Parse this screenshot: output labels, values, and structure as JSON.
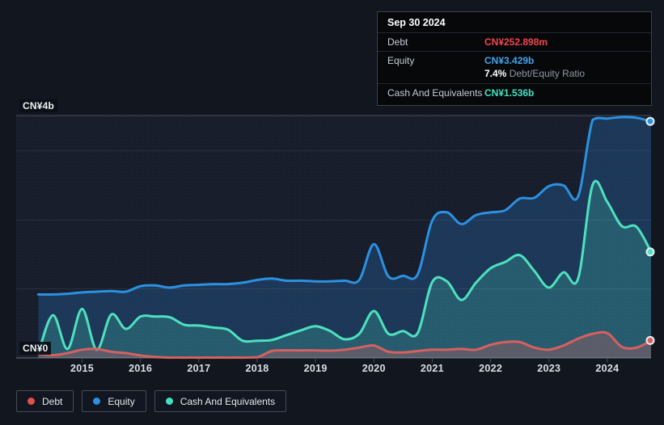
{
  "tooltip": {
    "date": "Sep 30 2024",
    "debt_label": "Debt",
    "debt_value": "CN¥252.898m",
    "equity_label": "Equity",
    "equity_value": "CN¥3.429b",
    "ratio_value": "7.4%",
    "ratio_label": "Debt/Equity Ratio",
    "cash_label": "Cash And Equivalents",
    "cash_value": "CN¥1.536b"
  },
  "y_axis": {
    "top_label": "CN¥4b",
    "zero_label": "CN¥0"
  },
  "x_axis": {
    "years": [
      "2015",
      "2016",
      "2017",
      "2018",
      "2019",
      "2020",
      "2021",
      "2022",
      "2023",
      "2024"
    ]
  },
  "legend": {
    "items": [
      {
        "label": "Debt",
        "color": "#e2504e"
      },
      {
        "label": "Equity",
        "color": "#2b90dd"
      },
      {
        "label": "Cash And Equivalents",
        "color": "#43dfc0"
      }
    ]
  },
  "colors": {
    "background": "#11161f",
    "plot_background": "#171d2a",
    "grid": "rgba(255,255,255,0.08)",
    "axis_line": "rgba(170,185,200,0.38)",
    "debt_text": "#f4464d",
    "equity_text": "#41a5f1",
    "cash_text": "#43e1c1"
  },
  "chart_data": {
    "type": "area",
    "title": "",
    "unit": "CN¥ billions",
    "xlabel": "Year",
    "ylabel": "CN¥",
    "xlim": [
      2013.87,
      2024.75
    ],
    "ylim": [
      0,
      3.513
    ],
    "gridlines_b": [
      1,
      2,
      3
    ],
    "legend_position": "bottom",
    "last_point_markers": true,
    "draw_order": [
      "Equity",
      "Cash And Equivalents",
      "Debt"
    ],
    "x": [
      2014.25,
      2014.5,
      2014.75,
      2015.0,
      2015.25,
      2015.5,
      2015.75,
      2016.0,
      2016.25,
      2016.5,
      2016.75,
      2017.0,
      2017.25,
      2017.5,
      2017.75,
      2018.0,
      2018.25,
      2018.5,
      2018.75,
      2019.0,
      2019.25,
      2019.5,
      2019.75,
      2020.0,
      2020.25,
      2020.5,
      2020.75,
      2021.0,
      2021.25,
      2021.5,
      2021.75,
      2022.0,
      2022.25,
      2022.5,
      2022.75,
      2023.0,
      2023.25,
      2023.5,
      2023.75,
      2024.0,
      2024.25,
      2024.5,
      2024.75
    ],
    "series": [
      {
        "name": "Debt",
        "color": "#d7605f",
        "fill": "rgba(215,96,95,0.30)",
        "values": [
          0.06,
          0.04,
          0.07,
          0.12,
          0.13,
          0.09,
          0.07,
          0.035,
          0.015,
          0.005,
          0.005,
          0.005,
          0.005,
          0.005,
          0.005,
          0.01,
          0.1,
          0.11,
          0.11,
          0.11,
          0.105,
          0.12,
          0.15,
          0.18,
          0.09,
          0.08,
          0.1,
          0.12,
          0.12,
          0.13,
          0.12,
          0.19,
          0.23,
          0.23,
          0.15,
          0.12,
          0.18,
          0.28,
          0.35,
          0.36,
          0.16,
          0.15,
          0.253
        ]
      },
      {
        "name": "Equity",
        "color": "#2b91e2",
        "fill": "rgba(43,125,205,0.28)",
        "values": [
          0.92,
          0.92,
          0.93,
          0.95,
          0.96,
          0.97,
          0.96,
          1.04,
          1.05,
          1.02,
          1.05,
          1.06,
          1.07,
          1.07,
          1.09,
          1.13,
          1.15,
          1.12,
          1.12,
          1.11,
          1.11,
          1.12,
          1.13,
          1.65,
          1.18,
          1.19,
          1.21,
          1.99,
          2.11,
          1.94,
          2.07,
          2.11,
          2.14,
          2.31,
          2.32,
          2.49,
          2.5,
          2.34,
          3.45,
          3.47,
          3.49,
          3.48,
          3.429
        ]
      },
      {
        "name": "Cash And Equivalents",
        "color": "#4de1bf",
        "fill": "rgba(77,225,191,0.22)",
        "values": [
          0.07,
          0.62,
          0.13,
          0.71,
          0.12,
          0.63,
          0.42,
          0.6,
          0.6,
          0.59,
          0.48,
          0.47,
          0.44,
          0.41,
          0.25,
          0.25,
          0.26,
          0.33,
          0.4,
          0.46,
          0.39,
          0.27,
          0.35,
          0.68,
          0.35,
          0.39,
          0.36,
          1.1,
          1.11,
          0.84,
          1.09,
          1.3,
          1.39,
          1.49,
          1.26,
          1.02,
          1.24,
          1.15,
          2.51,
          2.26,
          1.91,
          1.9,
          1.536
        ]
      }
    ]
  }
}
